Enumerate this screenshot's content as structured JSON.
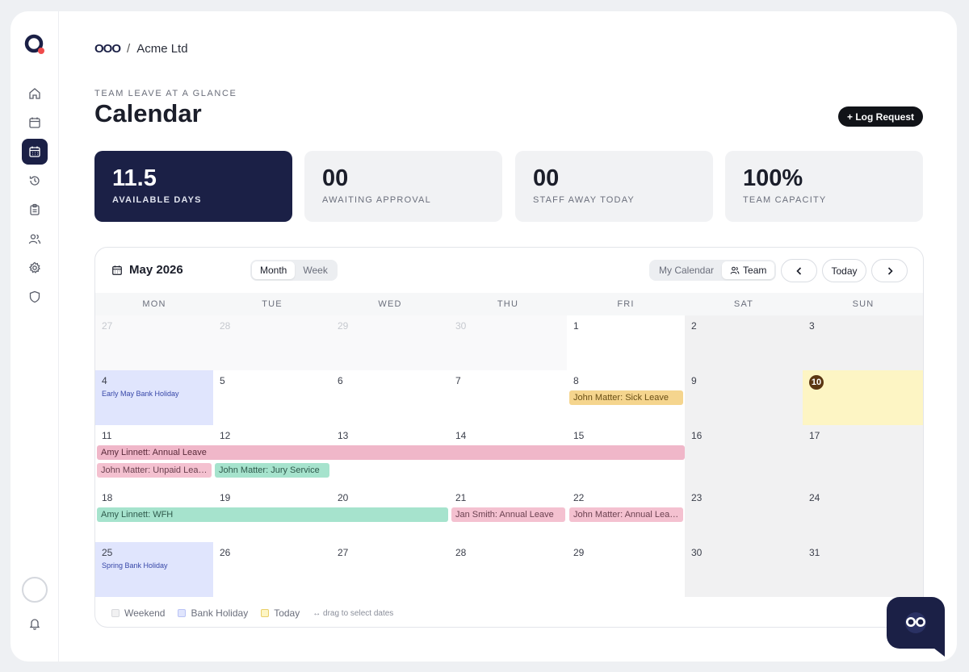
{
  "breadcrumb": {
    "logo_text": "OOO",
    "company": "Acme Ltd"
  },
  "header": {
    "eyebrow": "TEAM LEAVE AT A GLANCE",
    "title": "Calendar",
    "log_request_label": "+ Log Request"
  },
  "stats": [
    {
      "value": "11.5",
      "label": "AVAILABLE DAYS"
    },
    {
      "value": "00",
      "label": "AWAITING APPROVAL"
    },
    {
      "value": "00",
      "label": "STAFF AWAY TODAY"
    },
    {
      "value": "100%",
      "label": "TEAM CAPACITY"
    }
  ],
  "calendar": {
    "month_label": "May 2026",
    "view_toggle": {
      "month": "Month",
      "week": "Week",
      "selected": "Month"
    },
    "scope_toggle": {
      "mine": "My Calendar",
      "team": "Team",
      "selected": "Team"
    },
    "today_label": "Today",
    "weekdays": [
      "MON",
      "TUE",
      "WED",
      "THU",
      "FRI",
      "SAT",
      "SUN"
    ],
    "weeks": [
      [
        "27",
        "28",
        "29",
        "30",
        "1",
        "2",
        "3"
      ],
      [
        "4",
        "5",
        "6",
        "7",
        "8",
        "9",
        "10"
      ],
      [
        "11",
        "12",
        "13",
        "14",
        "15",
        "16",
        "17"
      ],
      [
        "18",
        "19",
        "20",
        "21",
        "22",
        "23",
        "24"
      ],
      [
        "25",
        "26",
        "27",
        "28",
        "29",
        "30",
        "31"
      ]
    ],
    "holidays": {
      "early_may": "Early May Bank Holiday",
      "spring": "Spring Bank Holiday"
    },
    "events": {
      "sick": "John Matter: Sick Leave",
      "amy_annual": "Amy Linnett: Annual Leave",
      "john_unpaid": "John Matter: Unpaid Lea…",
      "john_jury": "John Matter: Jury Service",
      "amy_wfh": "Amy Linnett: WFH",
      "jan_annual": "Jan Smith: Annual Leave",
      "john_annual": "John Matter: Annual Lea…"
    },
    "legend": {
      "weekend": "Weekend",
      "bank_holiday": "Bank Holiday",
      "today": "Today",
      "hint": "↔ drag to select dates"
    }
  },
  "colors": {
    "navy": "#1b2046",
    "holiday": "#e0e5fd",
    "today": "#fdf5c4",
    "today_badge": "#5b3612"
  },
  "icons": [
    "home-icon",
    "calendar-icon",
    "calendar-grid-icon",
    "history-icon",
    "clipboard-icon",
    "users-icon",
    "gear-icon",
    "shield-icon",
    "bell-icon",
    "chevron-left-icon",
    "chevron-right-icon",
    "owl-icon"
  ]
}
